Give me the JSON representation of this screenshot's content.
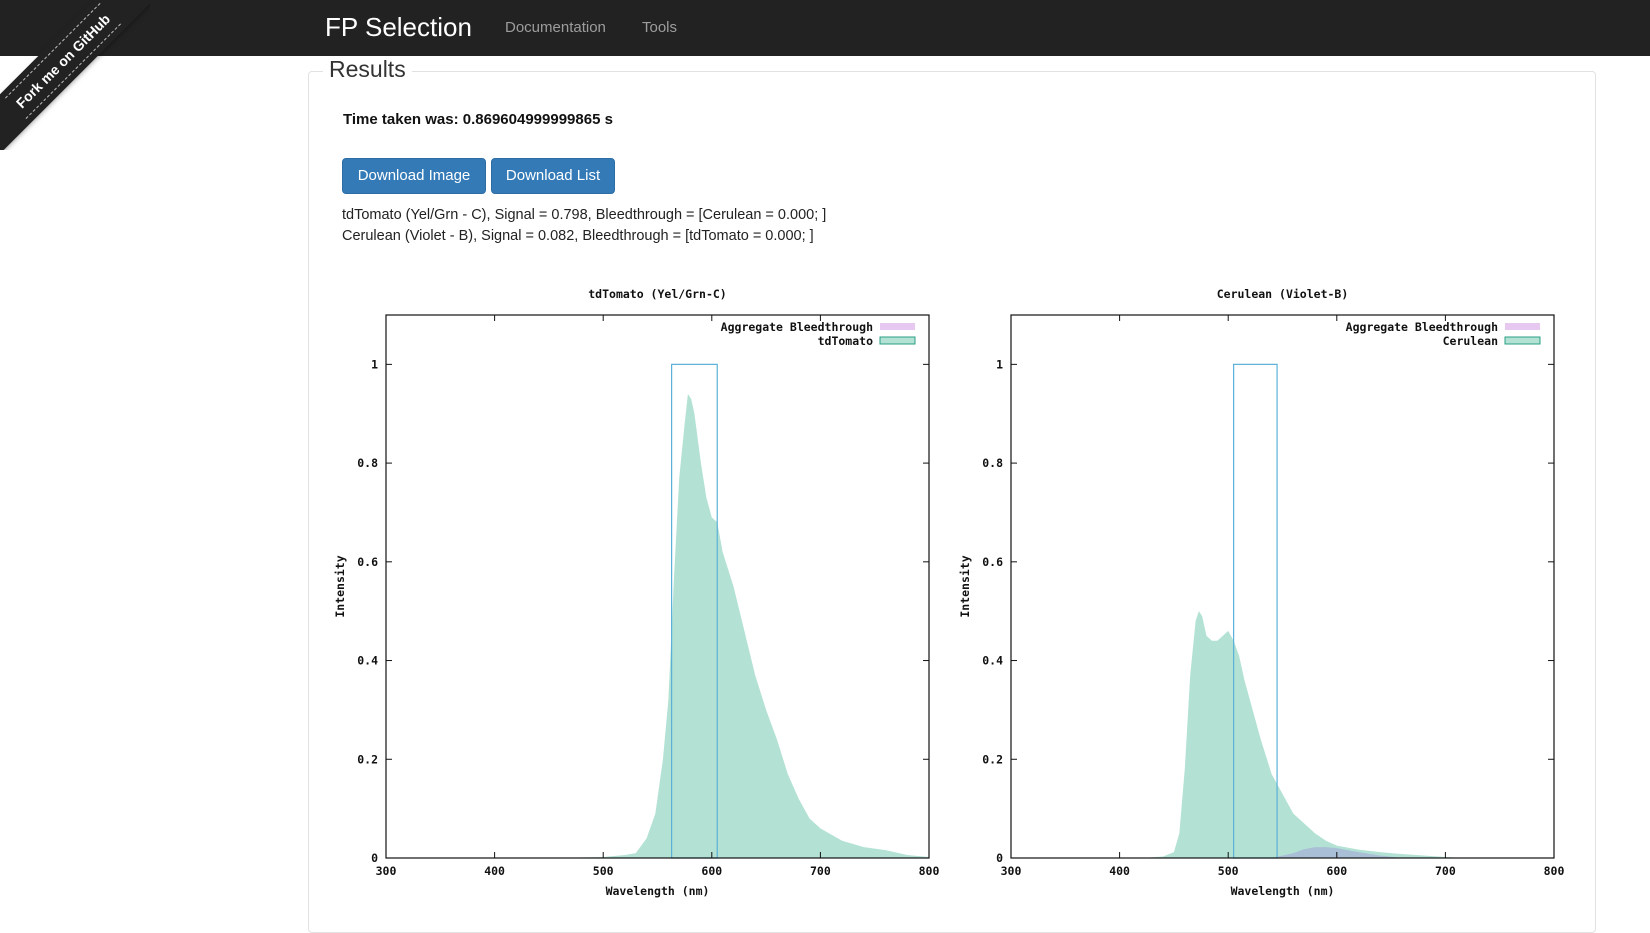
{
  "navbar": {
    "brand": "FP Selection",
    "links": [
      "Documentation",
      "Tools"
    ]
  },
  "ribbon": {
    "text": "Fork me on GitHub"
  },
  "results": {
    "title": "Results",
    "time_taken": "Time taken was: 0.869604999999865 s",
    "buttons": {
      "download_image": "Download Image",
      "download_list": "Download List"
    },
    "lines": [
      "tdTomato (Yel/Grn - C), Signal = 0.798, Bleedthrough = [Cerulean = 0.000; ]",
      "Cerulean (Violet - B), Signal = 0.082, Bleedthrough = [tdTomato = 0.000; ]"
    ]
  },
  "colors": {
    "fill": "#b3e2d5",
    "bleed": "#e6c8f0",
    "filter": "#5ab0d8",
    "bleed_overlap": "#a7b8d6"
  },
  "chart_data": [
    {
      "type": "area",
      "title": "tdTomato (Yel/Grn-C)",
      "xlabel": "Wavelength (nm)",
      "ylabel": "Intensity",
      "xlim": [
        300,
        800
      ],
      "ylim": [
        0,
        1.1
      ],
      "xticks": [
        "300",
        "400",
        "500",
        "600",
        "700",
        "800"
      ],
      "yticks": [
        "0",
        "0.2",
        "0.4",
        "0.6",
        "0.8",
        "1"
      ],
      "legend": [
        "Aggregate Bleedthrough",
        "tdTomato"
      ],
      "legend_position": "top-right",
      "filter_band": [
        563,
        605
      ],
      "series": [
        {
          "name": "tdTomato",
          "x": [
            450,
            500,
            520,
            530,
            540,
            548,
            555,
            560,
            565,
            570,
            575,
            578,
            581,
            584,
            587,
            590,
            595,
            600,
            605,
            610,
            620,
            630,
            640,
            650,
            660,
            670,
            680,
            690,
            700,
            720,
            740,
            760,
            780,
            800
          ],
          "y": [
            0,
            0.002,
            0.006,
            0.01,
            0.04,
            0.09,
            0.2,
            0.32,
            0.56,
            0.77,
            0.88,
            0.94,
            0.93,
            0.9,
            0.85,
            0.8,
            0.73,
            0.69,
            0.68,
            0.62,
            0.55,
            0.46,
            0.37,
            0.3,
            0.24,
            0.17,
            0.12,
            0.08,
            0.06,
            0.035,
            0.022,
            0.016,
            0.006,
            0.002
          ]
        },
        {
          "name": "Aggregate Bleedthrough",
          "x": [],
          "y": []
        }
      ]
    },
    {
      "type": "area",
      "title": "Cerulean (Violet-B)",
      "xlabel": "Wavelength (nm)",
      "ylabel": "Intensity",
      "xlim": [
        300,
        800
      ],
      "ylim": [
        0,
        1.1
      ],
      "xticks": [
        "300",
        "400",
        "500",
        "600",
        "700",
        "800"
      ],
      "yticks": [
        "0",
        "0.2",
        "0.4",
        "0.6",
        "0.8",
        "1"
      ],
      "legend": [
        "Aggregate Bleedthrough",
        "Cerulean"
      ],
      "legend_position": "top-right",
      "filter_band": [
        505,
        545
      ],
      "series": [
        {
          "name": "Cerulean",
          "x": [
            420,
            440,
            450,
            455,
            460,
            465,
            470,
            473,
            476,
            480,
            485,
            490,
            495,
            500,
            505,
            510,
            515,
            520,
            530,
            540,
            550,
            560,
            570,
            580,
            590,
            600,
            620,
            640,
            660,
            680,
            700,
            720
          ],
          "y": [
            0,
            0.003,
            0.012,
            0.05,
            0.18,
            0.37,
            0.48,
            0.5,
            0.49,
            0.45,
            0.44,
            0.44,
            0.45,
            0.46,
            0.44,
            0.41,
            0.36,
            0.32,
            0.24,
            0.17,
            0.13,
            0.09,
            0.07,
            0.05,
            0.035,
            0.025,
            0.017,
            0.012,
            0.008,
            0.005,
            0.002,
            0
          ]
        },
        {
          "name": "Aggregate Bleedthrough",
          "x": [
            540,
            560,
            570,
            580,
            590,
            600,
            620,
            640,
            660
          ],
          "y": [
            0,
            0.01,
            0.018,
            0.022,
            0.022,
            0.02,
            0.012,
            0.005,
            0
          ]
        }
      ]
    }
  ]
}
